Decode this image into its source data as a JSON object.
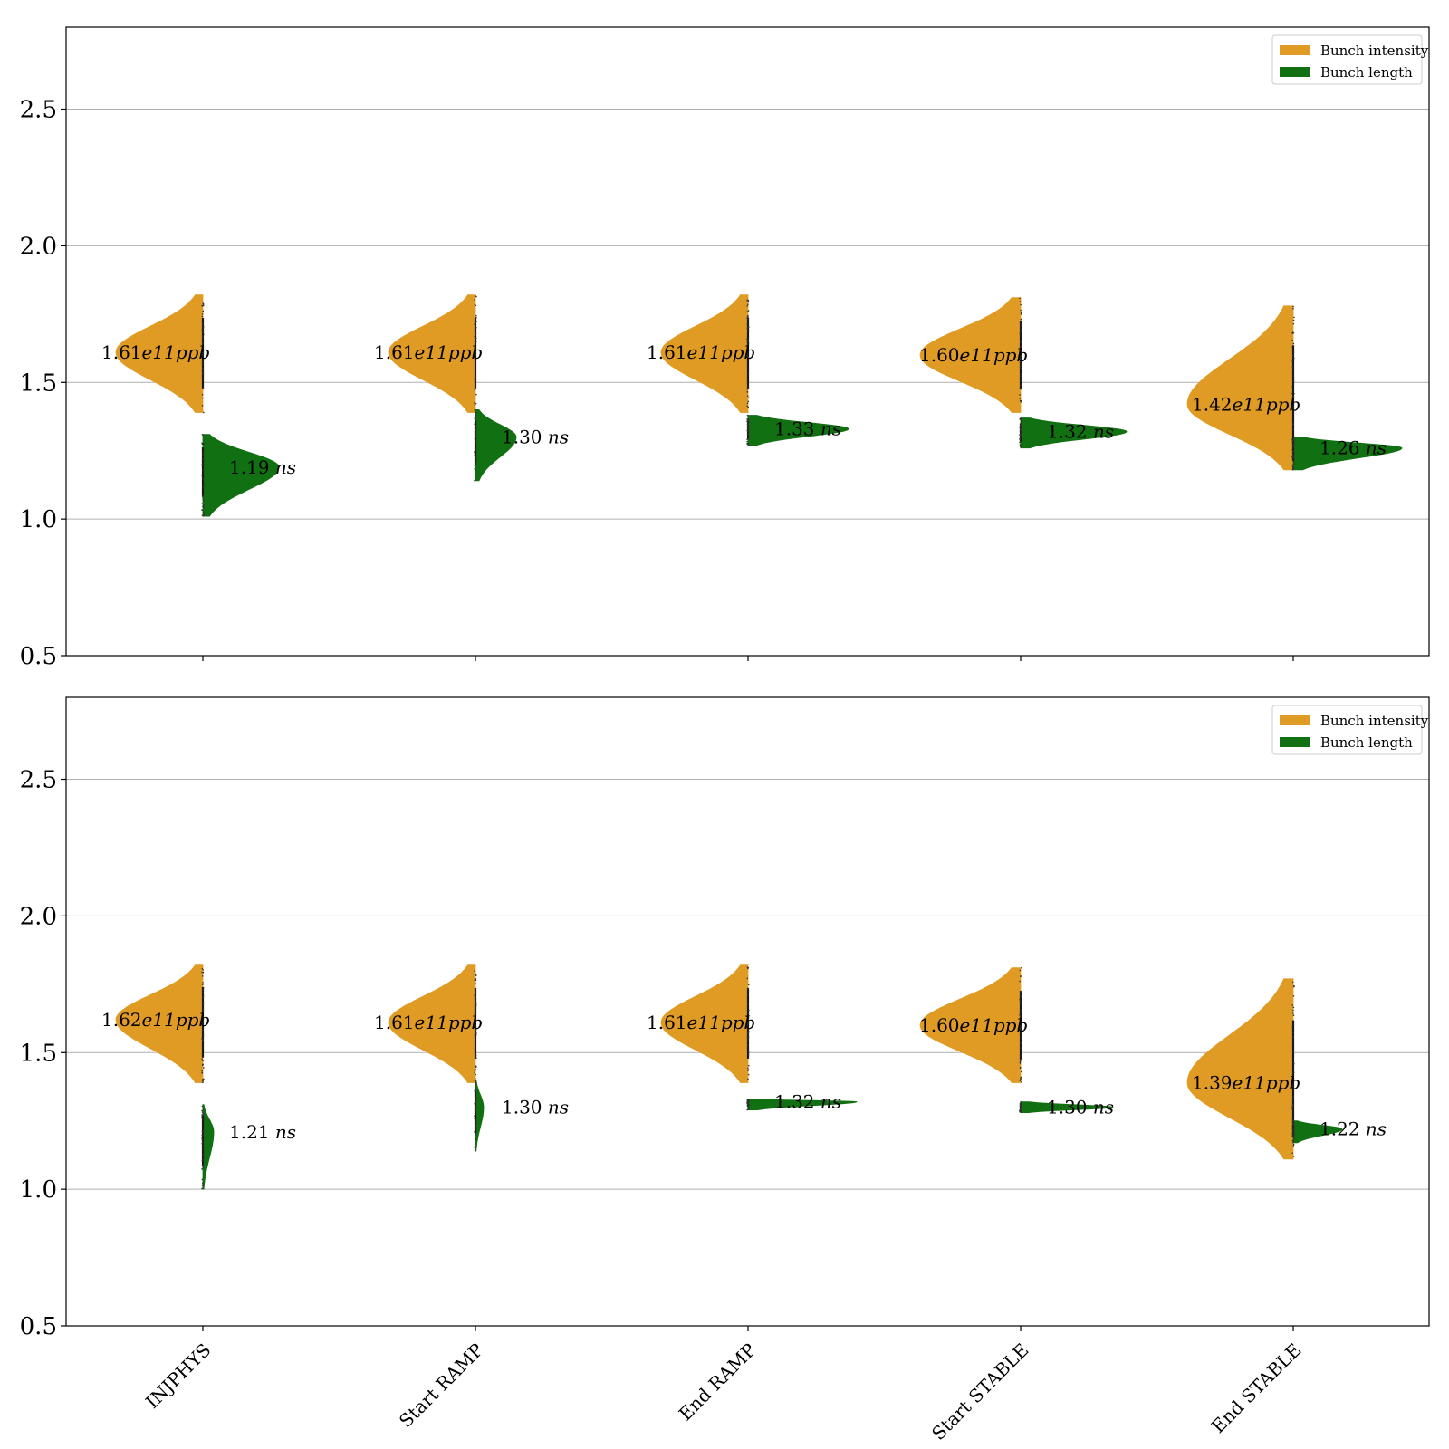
{
  "chart_data": {
    "type": "violin",
    "categories": [
      "INJPHYS",
      "Start RAMP",
      "End RAMP",
      "Start STABLE",
      "End STABLE"
    ],
    "ylim": [
      0.5,
      2.8
    ],
    "yticks": [
      0.5,
      1.0,
      1.5,
      2.0,
      2.5
    ],
    "grid": "horizontal",
    "legend": {
      "placement": "top-right",
      "entries": [
        {
          "label": "Bunch intensity",
          "color": "#e09b24"
        },
        {
          "label": "Bunch length",
          "color": "#117011"
        }
      ]
    },
    "panels": [
      {
        "violins": [
          {
            "category": "INJPHYS",
            "intensity": {
              "median": 1.61,
              "min": 1.39,
              "max": 1.82,
              "width": 0.32,
              "label_value": "1.61",
              "label_unit": "e11ppb"
            },
            "length": {
              "median": 1.19,
              "min": 1.01,
              "max": 1.31,
              "width": 0.28,
              "label_value": "1.19",
              "label_unit": "ns"
            }
          },
          {
            "category": "Start RAMP",
            "intensity": {
              "median": 1.61,
              "min": 1.39,
              "max": 1.82,
              "width": 0.32,
              "label_value": "1.61",
              "label_unit": "e11ppb"
            },
            "length": {
              "median": 1.3,
              "min": 1.14,
              "max": 1.4,
              "width": 0.15,
              "label_value": "1.30",
              "label_unit": "ns"
            }
          },
          {
            "category": "End RAMP",
            "intensity": {
              "median": 1.61,
              "min": 1.39,
              "max": 1.82,
              "width": 0.32,
              "label_value": "1.61",
              "label_unit": "e11ppb"
            },
            "length": {
              "median": 1.33,
              "min": 1.27,
              "max": 1.38,
              "width": 0.37,
              "label_value": "1.33",
              "label_unit": "ns"
            }
          },
          {
            "category": "Start STABLE",
            "intensity": {
              "median": 1.6,
              "min": 1.39,
              "max": 1.81,
              "width": 0.37,
              "label_value": "1.60",
              "label_unit": "e11ppb"
            },
            "length": {
              "median": 1.32,
              "min": 1.26,
              "max": 1.37,
              "width": 0.39,
              "label_value": "1.32",
              "label_unit": "ns"
            }
          },
          {
            "category": "End STABLE",
            "intensity": {
              "median": 1.42,
              "min": 1.18,
              "max": 1.78,
              "width": 0.39,
              "label_value": "1.42",
              "label_unit": "e11ppb"
            },
            "length": {
              "median": 1.26,
              "min": 1.18,
              "max": 1.3,
              "width": 0.4,
              "label_value": "1.26",
              "label_unit": "ns"
            }
          }
        ]
      },
      {
        "violins": [
          {
            "category": "INJPHYS",
            "intensity": {
              "median": 1.62,
              "min": 1.39,
              "max": 1.82,
              "width": 0.32,
              "label_value": "1.62",
              "label_unit": "e11ppb"
            },
            "length": {
              "median": 1.21,
              "min": 1.0,
              "max": 1.31,
              "width": 0.04,
              "label_value": "1.21",
              "label_unit": "ns"
            }
          },
          {
            "category": "Start RAMP",
            "intensity": {
              "median": 1.61,
              "min": 1.39,
              "max": 1.82,
              "width": 0.32,
              "label_value": "1.61",
              "label_unit": "e11ppb"
            },
            "length": {
              "median": 1.3,
              "min": 1.14,
              "max": 1.4,
              "width": 0.03,
              "label_value": "1.30",
              "label_unit": "ns"
            }
          },
          {
            "category": "End RAMP",
            "intensity": {
              "median": 1.61,
              "min": 1.39,
              "max": 1.82,
              "width": 0.32,
              "label_value": "1.61",
              "label_unit": "e11ppb"
            },
            "length": {
              "median": 1.32,
              "min": 1.29,
              "max": 1.33,
              "width": 0.4,
              "label_value": "1.32",
              "label_unit": "ns"
            }
          },
          {
            "category": "Start STABLE",
            "intensity": {
              "median": 1.6,
              "min": 1.39,
              "max": 1.81,
              "width": 0.37,
              "label_value": "1.60",
              "label_unit": "e11ppb"
            },
            "length": {
              "median": 1.3,
              "min": 1.28,
              "max": 1.32,
              "width": 0.34,
              "label_value": "1.30",
              "label_unit": "ns"
            }
          },
          {
            "category": "End STABLE",
            "intensity": {
              "median": 1.39,
              "min": 1.11,
              "max": 1.77,
              "width": 0.39,
              "label_value": "1.39",
              "label_unit": "e11ppb"
            },
            "length": {
              "median": 1.22,
              "min": 1.17,
              "max": 1.25,
              "width": 0.18,
              "label_value": "1.22",
              "label_unit": "ns"
            }
          }
        ]
      }
    ]
  }
}
